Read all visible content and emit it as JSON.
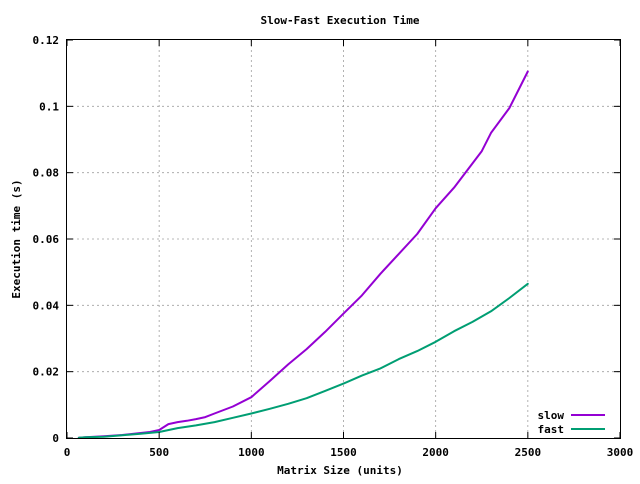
{
  "chart_data": {
    "type": "line",
    "title": "Slow-Fast Execution Time",
    "xlabel": "Matrix Size (units)",
    "ylabel": "Execution time (s)",
    "xlim": [
      0,
      3000
    ],
    "ylim": [
      0,
      0.12
    ],
    "x_ticks": [
      0,
      500,
      1000,
      1500,
      2000,
      2500,
      3000
    ],
    "x_tick_labels": [
      "0",
      "500",
      "1000",
      "1500",
      "2000",
      "2500",
      "3000"
    ],
    "y_ticks": [
      0,
      0.02,
      0.04,
      0.06,
      0.08,
      0.1,
      0.12
    ],
    "y_tick_labels": [
      "0",
      "0.02",
      "0.04",
      "0.06",
      "0.08",
      "0.1",
      "0.12"
    ],
    "grid": true,
    "legend_position": "bottom-right",
    "series": [
      {
        "name": "slow",
        "color": "#9400d3",
        "x": [
          64,
          100,
          200,
          300,
          400,
          450,
          500,
          550,
          600,
          650,
          700,
          750,
          800,
          900,
          1000,
          1100,
          1200,
          1300,
          1400,
          1500,
          1600,
          1700,
          1800,
          1900,
          2000,
          2100,
          2200,
          2250,
          2300,
          2400,
          2500
        ],
        "y": [
          0.0001,
          0.0002,
          0.0005,
          0.0009,
          0.0015,
          0.0018,
          0.0024,
          0.0042,
          0.0048,
          0.0052,
          0.0057,
          0.0063,
          0.0074,
          0.0095,
          0.0123,
          0.0172,
          0.0222,
          0.0268,
          0.032,
          0.0375,
          0.043,
          0.0495,
          0.0555,
          0.0615,
          0.0693,
          0.0755,
          0.0828,
          0.0865,
          0.092,
          0.0995,
          0.1105
        ]
      },
      {
        "name": "fast",
        "color": "#009e73",
        "x": [
          64,
          100,
          200,
          300,
          400,
          500,
          600,
          700,
          800,
          900,
          1000,
          1100,
          1200,
          1300,
          1400,
          1500,
          1600,
          1700,
          1800,
          1900,
          2000,
          2100,
          2200,
          2300,
          2400,
          2500
        ],
        "y": [
          0.0001,
          0.0002,
          0.0004,
          0.0008,
          0.0013,
          0.0018,
          0.003,
          0.0038,
          0.0048,
          0.0061,
          0.0074,
          0.0088,
          0.0103,
          0.012,
          0.0142,
          0.0164,
          0.0188,
          0.021,
          0.0238,
          0.0262,
          0.029,
          0.0322,
          0.035,
          0.0382,
          0.0422,
          0.0465
        ]
      }
    ]
  }
}
